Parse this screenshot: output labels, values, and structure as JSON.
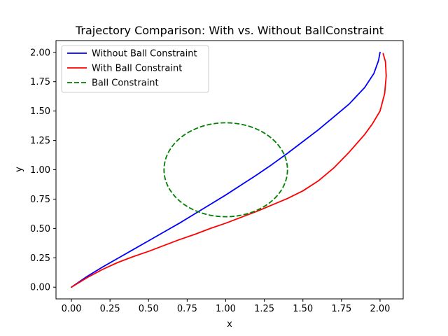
{
  "chart_data": {
    "type": "line",
    "title": "Trajectory Comparison: With vs. Without BallConstraint",
    "xlabel": "x",
    "ylabel": "y",
    "xlim": [
      -0.1,
      2.15
    ],
    "ylim": [
      -0.1,
      2.1
    ],
    "xticks": [
      0.0,
      0.25,
      0.5,
      0.75,
      1.0,
      1.25,
      1.5,
      1.75,
      2.0
    ],
    "xtick_labels": [
      "0.00",
      "0.25",
      "0.50",
      "0.75",
      "1.00",
      "1.25",
      "1.50",
      "1.75",
      "2.00"
    ],
    "yticks": [
      0.0,
      0.25,
      0.5,
      0.75,
      1.0,
      1.25,
      1.5,
      1.75,
      2.0
    ],
    "ytick_labels": [
      "0.00",
      "0.25",
      "0.50",
      "0.75",
      "1.00",
      "1.25",
      "1.50",
      "1.75",
      "2.00"
    ],
    "grid": false,
    "legend_position": "upper-left",
    "series": [
      {
        "name": "Without Ball Constraint",
        "color": "#0000ff",
        "style": "solid",
        "points": [
          [
            0.0,
            0.0
          ],
          [
            0.1,
            0.09
          ],
          [
            0.2,
            0.17
          ],
          [
            0.3,
            0.245
          ],
          [
            0.4,
            0.32
          ],
          [
            0.5,
            0.395
          ],
          [
            0.6,
            0.47
          ],
          [
            0.7,
            0.545
          ],
          [
            0.8,
            0.625
          ],
          [
            0.9,
            0.705
          ],
          [
            1.0,
            0.785
          ],
          [
            1.1,
            0.87
          ],
          [
            1.2,
            0.955
          ],
          [
            1.3,
            1.045
          ],
          [
            1.4,
            1.14
          ],
          [
            1.5,
            1.24
          ],
          [
            1.6,
            1.34
          ],
          [
            1.7,
            1.45
          ],
          [
            1.8,
            1.56
          ],
          [
            1.9,
            1.7
          ],
          [
            1.96,
            1.82
          ],
          [
            1.99,
            1.93
          ],
          [
            2.0,
            2.0
          ]
        ]
      },
      {
        "name": "With Ball Constraint",
        "color": "#ff0000",
        "style": "solid",
        "points": [
          [
            0.0,
            0.0
          ],
          [
            0.1,
            0.08
          ],
          [
            0.2,
            0.15
          ],
          [
            0.3,
            0.21
          ],
          [
            0.4,
            0.26
          ],
          [
            0.5,
            0.305
          ],
          [
            0.6,
            0.355
          ],
          [
            0.7,
            0.405
          ],
          [
            0.8,
            0.45
          ],
          [
            0.9,
            0.5
          ],
          [
            1.0,
            0.545
          ],
          [
            1.1,
            0.595
          ],
          [
            1.2,
            0.645
          ],
          [
            1.3,
            0.7
          ],
          [
            1.4,
            0.755
          ],
          [
            1.5,
            0.82
          ],
          [
            1.6,
            0.905
          ],
          [
            1.7,
            1.015
          ],
          [
            1.8,
            1.15
          ],
          [
            1.9,
            1.3
          ],
          [
            1.95,
            1.39
          ],
          [
            2.0,
            1.5
          ],
          [
            2.03,
            1.65
          ],
          [
            2.04,
            1.8
          ],
          [
            2.035,
            1.92
          ],
          [
            2.02,
            1.99
          ]
        ]
      },
      {
        "name": "Ball Constraint",
        "color": "#008000",
        "style": "dashed",
        "circle": {
          "center": [
            1.0,
            1.0
          ],
          "radius": 0.4
        }
      }
    ]
  }
}
